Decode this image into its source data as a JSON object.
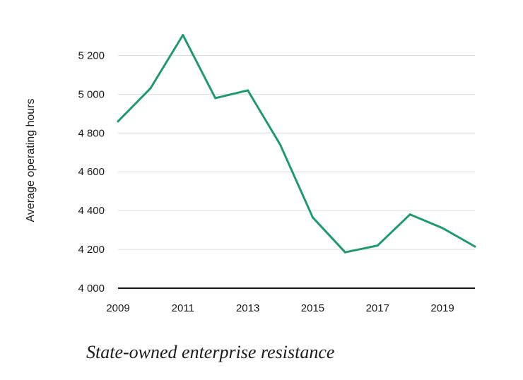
{
  "caption": "State-owned enterprise resistance",
  "colors": {
    "line": "#1f9a6e",
    "grid": "#dcdcdc",
    "axis": "#1a1a1a"
  },
  "chart_data": {
    "type": "line",
    "title": "",
    "xlabel": "",
    "ylabel": "Average operating hours",
    "x": [
      2009,
      2010,
      2011,
      2012,
      2013,
      2014,
      2015,
      2016,
      2017,
      2018,
      2019,
      2020
    ],
    "series": [
      {
        "values": [
          4860,
          5030,
          5305,
          4980,
          5020,
          4740,
          4365,
          4185,
          4220,
          4380,
          4310,
          4215
        ]
      }
    ],
    "ylim": [
      4000,
      5300
    ],
    "xlim": [
      2009,
      2020
    ],
    "y_ticks": [
      4000,
      4200,
      4400,
      4600,
      4800,
      5000,
      5200
    ],
    "y_tick_labels": [
      "4 000",
      "4 200",
      "4 400",
      "4 600",
      "4 800",
      "5 000",
      "5 200"
    ],
    "x_ticks": [
      2009,
      2011,
      2013,
      2015,
      2017,
      2019
    ],
    "x_tick_labels": [
      "2009",
      "2011",
      "2013",
      "2015",
      "2017",
      "2019"
    ],
    "grid": true,
    "legend": "none"
  }
}
